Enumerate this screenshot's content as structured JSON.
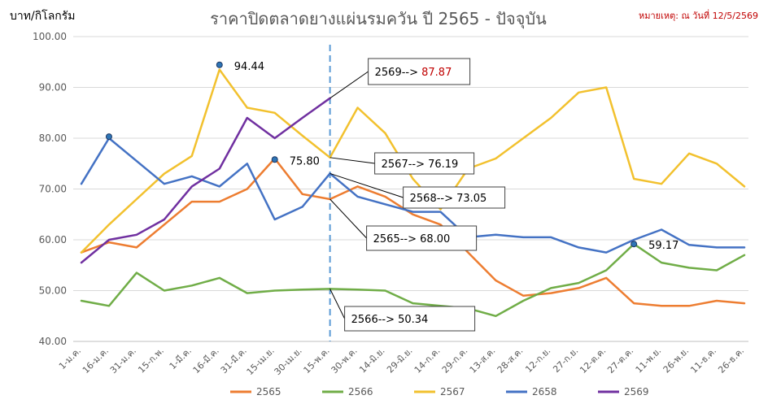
{
  "chart_data": {
    "type": "line",
    "title": "ราคาปิดตลาดยางแผ่นรมควัน ปี 2565 - ปัจจุบัน",
    "y_unit_label": "บาท/กิโลกรัม",
    "note": "หมายเหตุ: ณ วันที่ 12/5/2569",
    "ylim": [
      40,
      100
    ],
    "yticks": [
      "40.00",
      "50.00",
      "60.00",
      "70.00",
      "80.00",
      "90.00",
      "100.00"
    ],
    "grid": true,
    "legend_position": "bottom",
    "x_categories": [
      "1-ม.ค.",
      "16-ม.ค.",
      "31-ม.ค.",
      "15-ก.พ.",
      "1-มี.ค.",
      "16-มี.ค.",
      "31-มี.ค.",
      "15-เม.ย.",
      "30-เม.ย.",
      "15-พ.ค.",
      "30-พ.ค.",
      "14-มิ.ย.",
      "29-มิ.ย.",
      "14-ก.ค.",
      "29-ก.ค.",
      "13-ส.ค.",
      "28-ส.ค.",
      "12-ก.ย.",
      "27-ก.ย.",
      "12-ต.ค.",
      "27-ต.ค.",
      "11-พ.ย.",
      "26-พ.ย.",
      "11-ธ.ค.",
      "26-ธ.ค."
    ],
    "marker_x_index": 9,
    "series": [
      {
        "name": "2565",
        "color": "#ed7d31",
        "values": [
          57.5,
          59.5,
          58.5,
          63,
          67.5,
          67.5,
          70,
          76,
          69,
          68,
          70.5,
          68.5,
          65,
          63,
          57.5,
          52,
          49,
          49.5,
          50.5,
          52.5,
          47.5,
          47,
          47,
          48,
          47.5
        ]
      },
      {
        "name": "2566",
        "color": "#70ad47",
        "values": [
          48,
          47,
          53.5,
          50,
          51,
          52.5,
          49.5,
          50,
          50.2,
          50.34,
          50.2,
          50,
          47.5,
          47,
          46.5,
          45,
          48,
          50.5,
          51.5,
          54,
          59.17,
          55.5,
          54.5,
          54,
          57
        ]
      },
      {
        "name": "2567",
        "color": "#f2c12e",
        "values": [
          57.5,
          63,
          68,
          73,
          76.5,
          93.5,
          86,
          85,
          80.5,
          76.19,
          86,
          81,
          72,
          66,
          74,
          76,
          80,
          84,
          89,
          90,
          72,
          71,
          77,
          75,
          70.5
        ]
      },
      {
        "name": "2658",
        "color": "#4472c4",
        "values": [
          71,
          80,
          75.5,
          71,
          72.5,
          70.5,
          75,
          64,
          66.5,
          73.05,
          68.5,
          67,
          65.5,
          65.5,
          60.5,
          61,
          60.5,
          60.5,
          58.5,
          57.5,
          60,
          62,
          59,
          58.5,
          58.5
        ]
      },
      {
        "name": "2569",
        "color": "#7030a0",
        "values": [
          55.5,
          60,
          61,
          64,
          70.5,
          74,
          84,
          80,
          84,
          87.87
        ]
      }
    ],
    "callouts": [
      {
        "text": "2569--> ",
        "value": "87.87",
        "series": "2569",
        "x_index": 9
      },
      {
        "text": "2567--> 76.19",
        "series": "2567",
        "x_index": 9
      },
      {
        "text": "2568--> 73.05",
        "series": "2658",
        "x_index": 9
      },
      {
        "text": "2565--> 68.00",
        "series": "2565",
        "x_index": 9
      },
      {
        "text": "2566--> 50.34",
        "series": "2566",
        "x_index": 9
      }
    ],
    "peaks": [
      {
        "label": "94.44",
        "series": "2567",
        "x_index": 5,
        "value": 94.44
      },
      {
        "label": "75.80",
        "series": "2565",
        "x_index": 7,
        "value": 75.8
      },
      {
        "label": "59.17",
        "series": "2566",
        "x_index": 20,
        "value": 59.17
      },
      {
        "label": "",
        "series": "2658",
        "x_index": 1,
        "value": 80.3
      }
    ]
  }
}
